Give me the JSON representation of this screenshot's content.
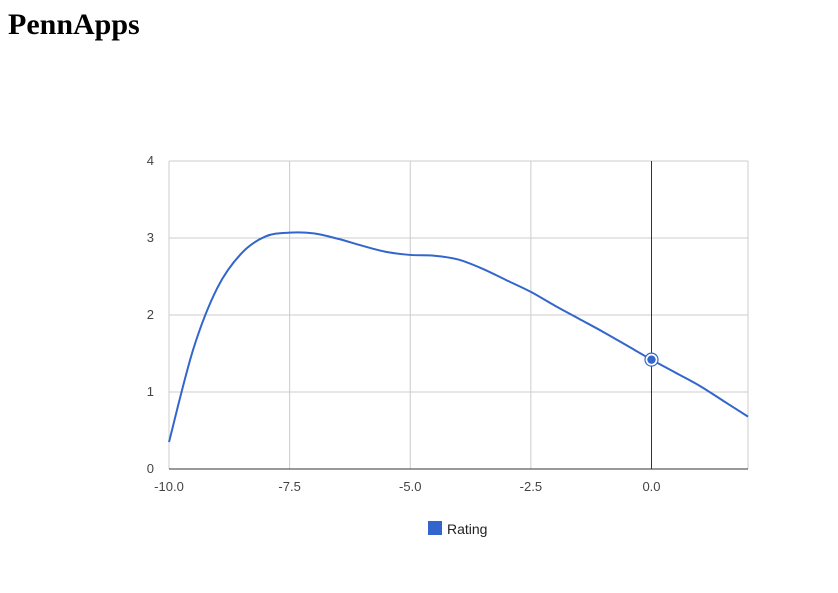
{
  "page": {
    "title": "PennApps"
  },
  "chart_data": {
    "type": "line",
    "title": "",
    "xlabel": "",
    "ylabel": "",
    "xlim": [
      -10.0,
      2.0
    ],
    "ylim": [
      0,
      4
    ],
    "x_ticks": [
      "-10.0",
      "-7.5",
      "-5.0",
      "-2.5",
      "0.0"
    ],
    "x_tick_values": [
      -10.0,
      -7.5,
      -5.0,
      -2.5,
      0.0
    ],
    "y_ticks": [
      "0",
      "1",
      "2",
      "3",
      "4"
    ],
    "y_tick_values": [
      0,
      1,
      2,
      3,
      4
    ],
    "grid": true,
    "legend": "bottom",
    "series": [
      {
        "name": "Rating",
        "color": "#3366cc",
        "x": [
          -10.0,
          -9.5,
          -9.0,
          -8.5,
          -8.0,
          -7.5,
          -7.0,
          -6.5,
          -6.0,
          -5.5,
          -5.0,
          -4.5,
          -4.0,
          -3.5,
          -3.0,
          -2.5,
          -2.0,
          -1.5,
          -1.0,
          -0.5,
          0.0,
          0.5,
          1.0,
          1.5,
          2.0
        ],
        "y": [
          0.35,
          1.55,
          2.35,
          2.8,
          3.02,
          3.07,
          3.06,
          2.99,
          2.9,
          2.82,
          2.78,
          2.77,
          2.72,
          2.6,
          2.45,
          2.3,
          2.12,
          1.95,
          1.78,
          1.6,
          1.42,
          1.25,
          1.08,
          0.88,
          0.68
        ]
      }
    ],
    "highlight": {
      "series": "Rating",
      "x": 0.0,
      "y": 1.42
    }
  }
}
